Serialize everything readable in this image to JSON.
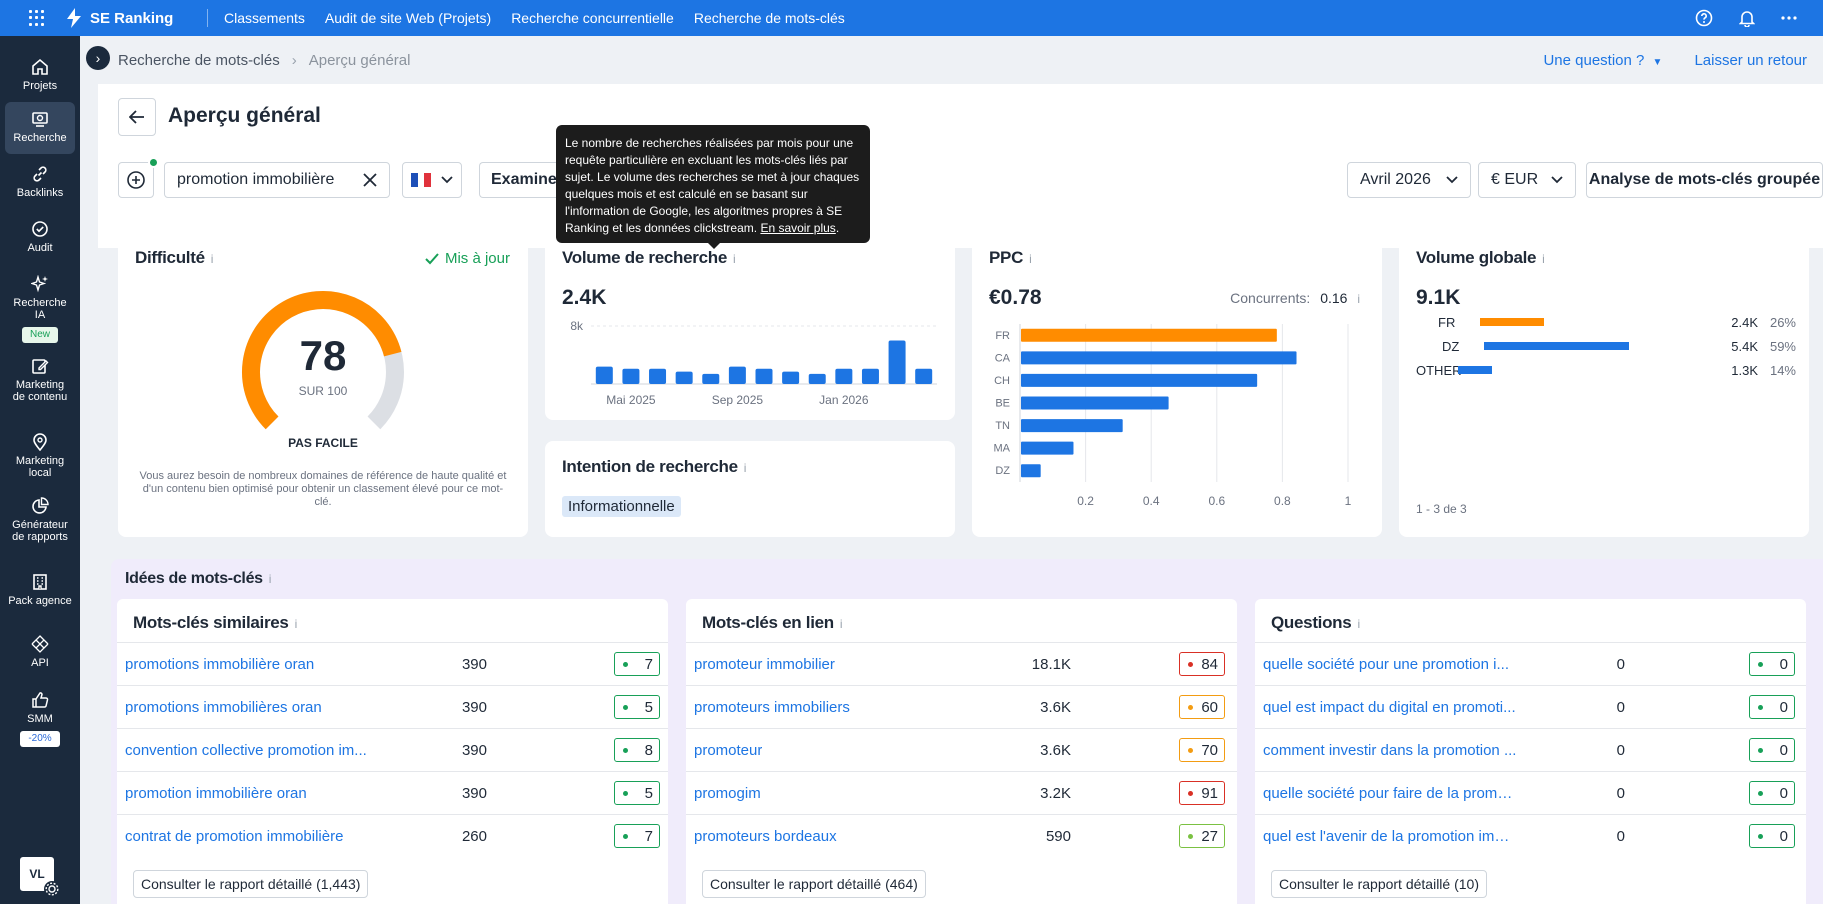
{
  "topbar": {
    "brand": "SE Ranking",
    "nav": [
      "Classements",
      "Audit de site Web (Projets)",
      "Recherche concurrentielle",
      "Recherche de mots-clés"
    ]
  },
  "sidebar": {
    "items": [
      {
        "label": "Projets",
        "icon": "home-icon"
      },
      {
        "label": "Recherche",
        "icon": "research-icon",
        "active": true
      },
      {
        "label": "Backlinks",
        "icon": "link-icon"
      },
      {
        "label": "Audit",
        "icon": "check-circle-icon"
      },
      {
        "label": "Recherche IA",
        "icon": "sparkles-icon",
        "badge": "New"
      },
      {
        "label": "Marketing de contenu",
        "icon": "edit-icon"
      },
      {
        "label": "Marketing local",
        "icon": "pin-icon"
      },
      {
        "label": "Générateur de rapports",
        "icon": "pie-chart-icon"
      },
      {
        "label": "Pack agence",
        "icon": "building-icon"
      },
      {
        "label": "API",
        "icon": "api-icon"
      },
      {
        "label": "SMM",
        "icon": "thumbs-up-icon",
        "badge": "-20%"
      }
    ],
    "avatar": "VL"
  },
  "breadcrumb": {
    "root": "Recherche de mots-clés",
    "current": "Aperçu général",
    "question": "Une question ?",
    "feedback": "Laisser un retour"
  },
  "header": {
    "title": "Aperçu général",
    "keyword": "promotion immobilière",
    "examine": "Examiner",
    "month": "Avril 2026",
    "currency": "€ EUR",
    "grouped": "Analyse de mots-clés groupée"
  },
  "tooltip": {
    "text": "Le nombre de recherches réalisées par mois pour une requête particulière en excluant les mots-clés liés par sujet. Le volume des recherches se met à jour chaques quelques mois et est calculé en se basant sur l'information de Google, les algoritmes propres à SE Ranking et les données clickstream.",
    "link": "En savoir plus"
  },
  "difficulty": {
    "title": "Difficulté",
    "status": "Mis à jour",
    "value": "78",
    "of": "SUR 100",
    "verdict": "PAS FACILE",
    "desc": "Vous aurez besoin de nombreux domaines de référence de haute qualité et d'un contenu bien optimisé pour obtenir un classement élevé pour ce mot-clé.",
    "fraction": 0.78,
    "colors": {
      "filled": "#ff8c00",
      "empty": "#dcdfe4"
    }
  },
  "volume": {
    "title": "Volume de recherche",
    "value": "2.4K"
  },
  "intent": {
    "title": "Intention de recherche",
    "tag": "Informationnelle"
  },
  "ppc": {
    "title": "PPC",
    "value": "€0.78",
    "competitors_label": "Concurrents:",
    "competitors_value": "0.16"
  },
  "global": {
    "title": "Volume globale",
    "value": "9.1K",
    "rows": [
      {
        "country": "FR",
        "volume": "2.4K",
        "pct": "26%",
        "share": 0.26,
        "color": "#ff8c00"
      },
      {
        "country": "DZ",
        "volume": "5.4K",
        "pct": "59%",
        "share": 0.59,
        "color": "#1d75e3"
      },
      {
        "country": "OTHER",
        "volume": "1.3K",
        "pct": "14%",
        "share": 0.14,
        "color": "#1d75e3"
      }
    ],
    "footer": "1 - 3 de 3"
  },
  "chart_data": [
    {
      "type": "bar",
      "title": "Volume de recherche",
      "ytick": "8k",
      "ylim": [
        0,
        8000
      ],
      "x_tick_labels": [
        "Mai 2025",
        "Sep 2025",
        "Jan 2026"
      ],
      "categories": [
        "Avr 2025",
        "Mai 2025",
        "Juin 2025",
        "Juil 2025",
        "Août 2025",
        "Sep 2025",
        "Oct 2025",
        "Nov 2025",
        "Déc 2025",
        "Jan 2026",
        "Fév 2026",
        "Mar 2026",
        "Avr 2026"
      ],
      "values": [
        2400,
        2100,
        2100,
        1700,
        1400,
        2400,
        2100,
        1700,
        1400,
        2100,
        2100,
        6000,
        2100
      ],
      "color": "#1d75e3"
    },
    {
      "type": "bar",
      "orientation": "horizontal",
      "title": "PPC",
      "categories": [
        "FR",
        "CA",
        "CH",
        "BE",
        "TN",
        "MA",
        "DZ"
      ],
      "values": [
        0.78,
        0.84,
        0.72,
        0.45,
        0.31,
        0.16,
        0.06
      ],
      "xticks": [
        "0.2",
        "0.4",
        "0.6",
        "0.8",
        "1"
      ],
      "xlim": [
        0,
        1
      ],
      "colors": {
        "highlight": "#ff8c00",
        "default": "#1d75e3"
      }
    }
  ],
  "ideas": {
    "title": "Idées de mots-clés",
    "panels": [
      {
        "title": "Mots-clés similaires",
        "rows": [
          {
            "kw": "promotions immobilière oran",
            "vol": "390",
            "kd": "7",
            "level": "low"
          },
          {
            "kw": "promotions immobilières oran",
            "vol": "390",
            "kd": "5",
            "level": "low"
          },
          {
            "kw": "convention collective promotion im...",
            "vol": "390",
            "kd": "8",
            "level": "low"
          },
          {
            "kw": "promotion immobilière oran",
            "vol": "390",
            "kd": "5",
            "level": "low"
          },
          {
            "kw": "contrat de promotion immobilière",
            "vol": "260",
            "kd": "7",
            "level": "low"
          }
        ],
        "report": "Consulter le rapport détaillé (1,443)"
      },
      {
        "title": "Mots-clés en lien",
        "rows": [
          {
            "kw": "promoteur immobilier",
            "vol": "18.1K",
            "kd": "84",
            "level": "high"
          },
          {
            "kw": "promoteurs immobiliers",
            "vol": "3.6K",
            "kd": "60",
            "level": "mid"
          },
          {
            "kw": "promoteur",
            "vol": "3.6K",
            "kd": "70",
            "level": "mid"
          },
          {
            "kw": "promogim",
            "vol": "3.2K",
            "kd": "91",
            "level": "high"
          },
          {
            "kw": "promoteurs bordeaux",
            "vol": "590",
            "kd": "27",
            "level": "easy"
          }
        ],
        "report": "Consulter le rapport détaillé (464)"
      },
      {
        "title": "Questions",
        "rows": [
          {
            "kw": "quelle société pour une promotion i...",
            "vol": "0",
            "kd": "0",
            "level": "low"
          },
          {
            "kw": "quel est impact du digital en promoti...",
            "vol": "0",
            "kd": "0",
            "level": "low"
          },
          {
            "kw": "comment investir dans la promotion ...",
            "vol": "0",
            "kd": "0",
            "level": "low"
          },
          {
            "kw": "quelle société pour faire de la promo...",
            "vol": "0",
            "kd": "0",
            "level": "low"
          },
          {
            "kw": "quel est l'avenir de la promotion imm...",
            "vol": "0",
            "kd": "0",
            "level": "low"
          }
        ],
        "report": "Consulter le rapport détaillé (10)"
      }
    ]
  },
  "kd_colors": {
    "low": "#18a058",
    "easy": "#7bc142",
    "mid": "#f39c12",
    "high": "#d93025"
  }
}
